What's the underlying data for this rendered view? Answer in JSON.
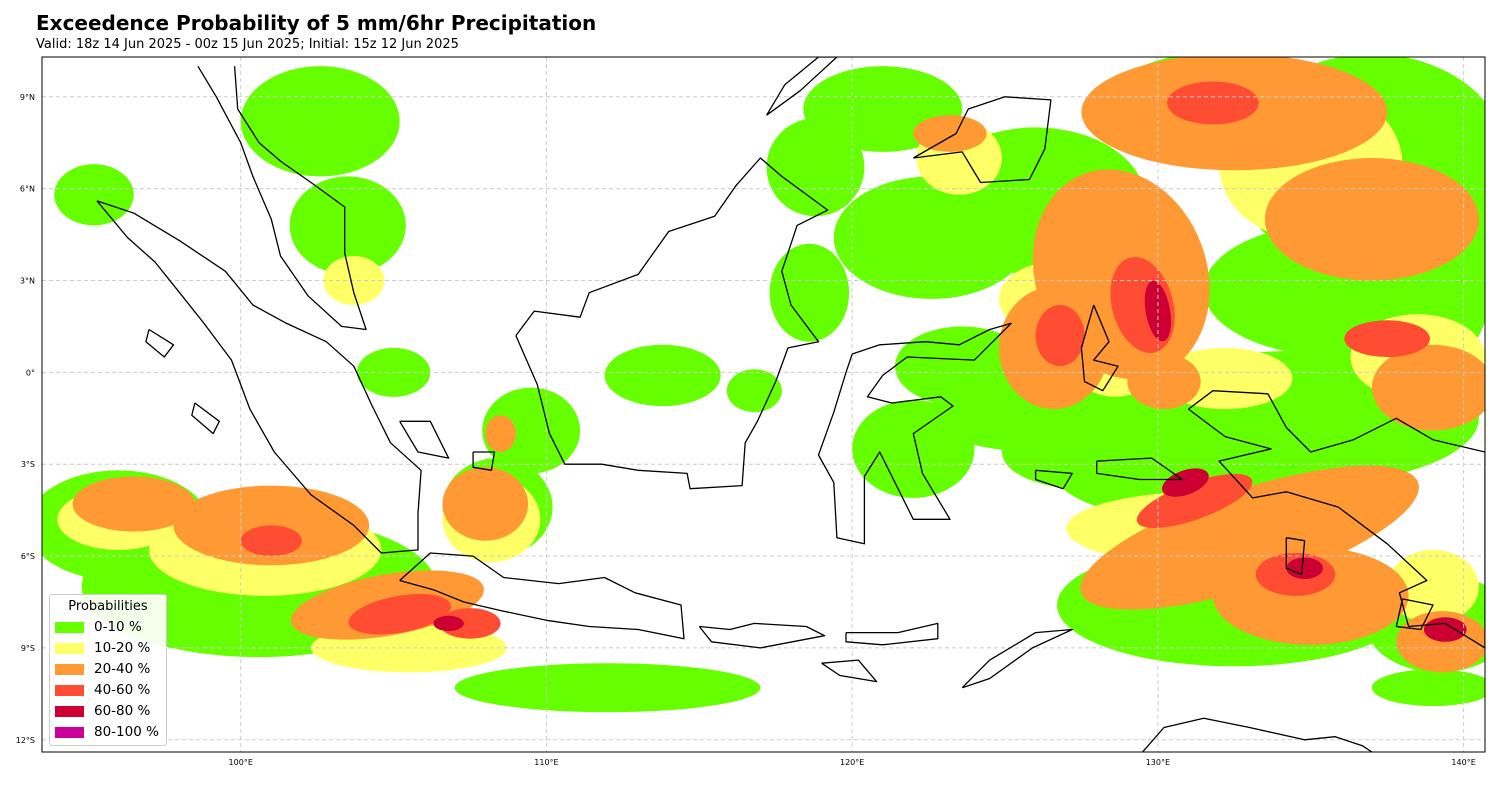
{
  "header": {
    "title": "Exceedence Probability of 5 mm/6hr Precipitation",
    "subtitle": "Valid: 18z 14 Jun 2025 - 00z 15 Jun 2025; Initial: 15z 12 Jun 2025"
  },
  "map": {
    "region": "Indonesia / Maritime Continent",
    "lon_range": [
      93.5,
      140.7
    ],
    "lat_range": [
      -12.4,
      10.3
    ],
    "grid": true,
    "lon_ticks": [
      {
        "value": 100,
        "label": "100°E"
      },
      {
        "value": 110,
        "label": "110°E"
      },
      {
        "value": 120,
        "label": "120°E"
      },
      {
        "value": 130,
        "label": "130°E"
      },
      {
        "value": 140,
        "label": "140°E"
      }
    ],
    "lat_ticks": [
      {
        "value": 9,
        "label": "9°N"
      },
      {
        "value": 6,
        "label": "6°N"
      },
      {
        "value": 3,
        "label": "3°N"
      },
      {
        "value": 0,
        "label": "0°"
      },
      {
        "value": -3,
        "label": "3°S"
      },
      {
        "value": -6,
        "label": "6°S"
      },
      {
        "value": -9,
        "label": "9°S"
      },
      {
        "value": -12,
        "label": "12°S"
      }
    ]
  },
  "legend": {
    "title": "Probabilities",
    "placement": "lower-left",
    "items": [
      {
        "label": "0-10 %",
        "color": "#66ff00"
      },
      {
        "label": "10-20 %",
        "color": "#ffff66"
      },
      {
        "label": "20-40 %",
        "color": "#ff9933"
      },
      {
        "label": "40-60 %",
        "color": "#ff4d33"
      },
      {
        "label": "60-80 %",
        "color": "#cc0033"
      },
      {
        "label": "80-100 %",
        "color": "#cc0099"
      }
    ]
  },
  "colors": {
    "coastline": "#000000",
    "grid": "#cccccc",
    "background": "#ffffff"
  }
}
